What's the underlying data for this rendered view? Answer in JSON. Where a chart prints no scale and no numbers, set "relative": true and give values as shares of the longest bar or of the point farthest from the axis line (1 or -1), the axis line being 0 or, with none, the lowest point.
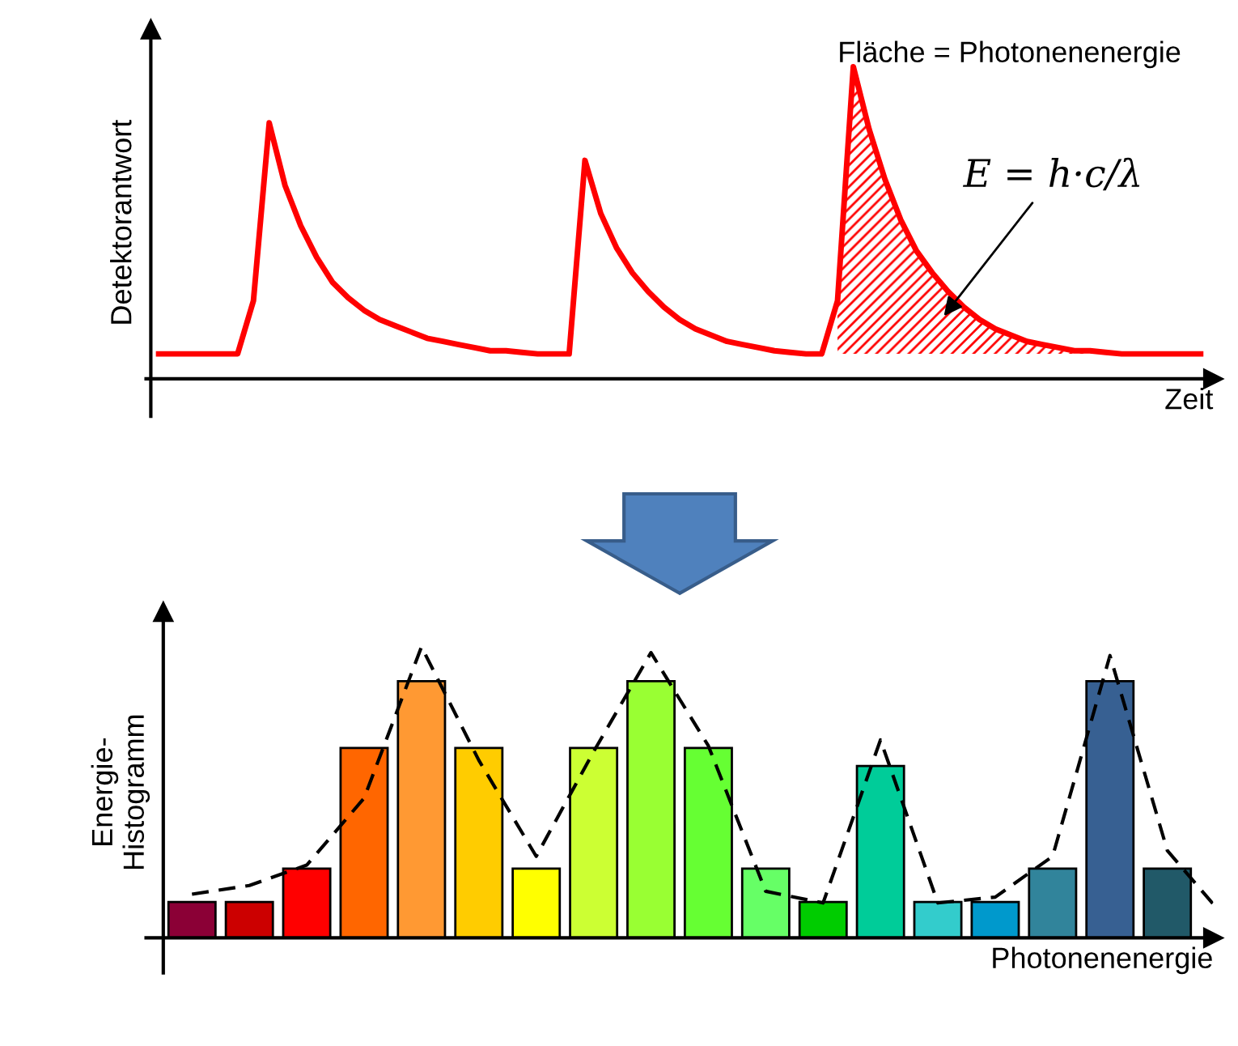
{
  "chart_data": [
    {
      "type": "line",
      "relative": true,
      "xlabel": "Zeit",
      "ylabel": "Detektorantwort",
      "categories": [
        null,
        null,
        null,
        null,
        null,
        null,
        null,
        null,
        null,
        null,
        null,
        null,
        null,
        null,
        null,
        null,
        null,
        null,
        null,
        null,
        null,
        null,
        null,
        null,
        null,
        null,
        null,
        null,
        null,
        null,
        null,
        null,
        null,
        null,
        null,
        null,
        null,
        null,
        null,
        null,
        null,
        null,
        null,
        null,
        null,
        null,
        null,
        null,
        null,
        null,
        null,
        null,
        null,
        null,
        null,
        null,
        null,
        null,
        null,
        null,
        null,
        null,
        null,
        null,
        null,
        null,
        null
      ],
      "series": [
        {
          "color": "#ff0000",
          "values": [
            0.08,
            0.08,
            0.08,
            0.08,
            0.08,
            0.08,
            0.25,
            0.82,
            0.62,
            0.49,
            0.39,
            0.31,
            0.26,
            0.22,
            0.19,
            0.17,
            0.15,
            0.13,
            0.12,
            0.11,
            0.1,
            0.09,
            0.09,
            0.085,
            0.08,
            0.08,
            0.08,
            0.7,
            0.53,
            0.42,
            0.34,
            0.28,
            0.23,
            0.19,
            0.16,
            0.14,
            0.12,
            0.11,
            0.1,
            0.09,
            0.085,
            0.08,
            0.08,
            0.25,
            1.0,
            0.8,
            0.64,
            0.51,
            0.41,
            0.34,
            0.28,
            0.23,
            0.19,
            0.16,
            0.14,
            0.12,
            0.11,
            0.1,
            0.09,
            0.09,
            0.085,
            0.08,
            0.08,
            0.08,
            0.08,
            0.08,
            0.08
          ]
        },
        {
          "type": "area",
          "color": "#ff0000",
          "values": [
            null,
            null,
            null,
            null,
            null,
            null,
            null,
            null,
            null,
            null,
            null,
            null,
            null,
            null,
            null,
            null,
            null,
            null,
            null,
            null,
            null,
            null,
            null,
            null,
            null,
            null,
            null,
            null,
            null,
            null,
            null,
            null,
            null,
            null,
            null,
            null,
            null,
            null,
            null,
            null,
            null,
            null,
            null,
            0.25,
            1.0,
            0.8,
            0.64,
            0.51,
            0.41,
            0.34,
            0.28,
            0.23,
            0.19,
            0.16,
            0.14,
            0.12,
            0.11,
            0.1,
            0.09,
            0.09,
            0.085,
            0.08,
            null,
            null,
            null,
            null,
            null
          ]
        }
      ],
      "annotations": [
        "Fläche = Photonenenergie",
        "E = h·c/λ"
      ]
    },
    {
      "type": "bar",
      "relative": true,
      "xlabel": "Photonenenergie",
      "ylabel": "Energie-\nHistogramm",
      "categories": [
        null,
        null,
        null,
        null,
        null,
        null,
        null,
        null,
        null,
        null,
        null,
        null,
        null,
        null,
        null,
        null,
        null,
        null
      ],
      "series": [
        {
          "values": [
            0.14,
            0.14,
            0.27,
            0.74,
            1.0,
            0.74,
            0.27,
            0.74,
            1.0,
            0.74,
            0.27,
            0.14,
            0.67,
            0.14,
            0.14,
            0.27,
            1.0,
            0.27
          ],
          "colors": [
            "#8b0036",
            "#cc0000",
            "#ff0000",
            "#ff6600",
            "#ff9933",
            "#ffcc00",
            "#ffff00",
            "#ccff33",
            "#99ff33",
            "#66ff33",
            "#66ff66",
            "#00cc00",
            "#00cc99",
            "#33cccc",
            "#0099cc",
            "#31849b",
            "#376092",
            "#215968"
          ]
        }
      ]
    },
    {
      "type": "line",
      "relative": true,
      "categories": [
        null,
        null,
        null,
        null,
        null,
        null,
        null,
        null,
        null,
        null,
        null,
        null,
        null,
        null,
        null,
        null,
        null,
        null,
        null
      ],
      "series": [
        {
          "color": "#000000",
          "line_style": "dashed",
          "values": [
            0.15,
            0.18,
            0.25,
            0.48,
            1.0,
            0.61,
            0.28,
            0.64,
            0.98,
            0.66,
            0.16,
            0.12,
            0.68,
            0.12,
            0.14,
            0.28,
            0.97,
            0.3,
            0.07
          ]
        }
      ]
    }
  ]
}
